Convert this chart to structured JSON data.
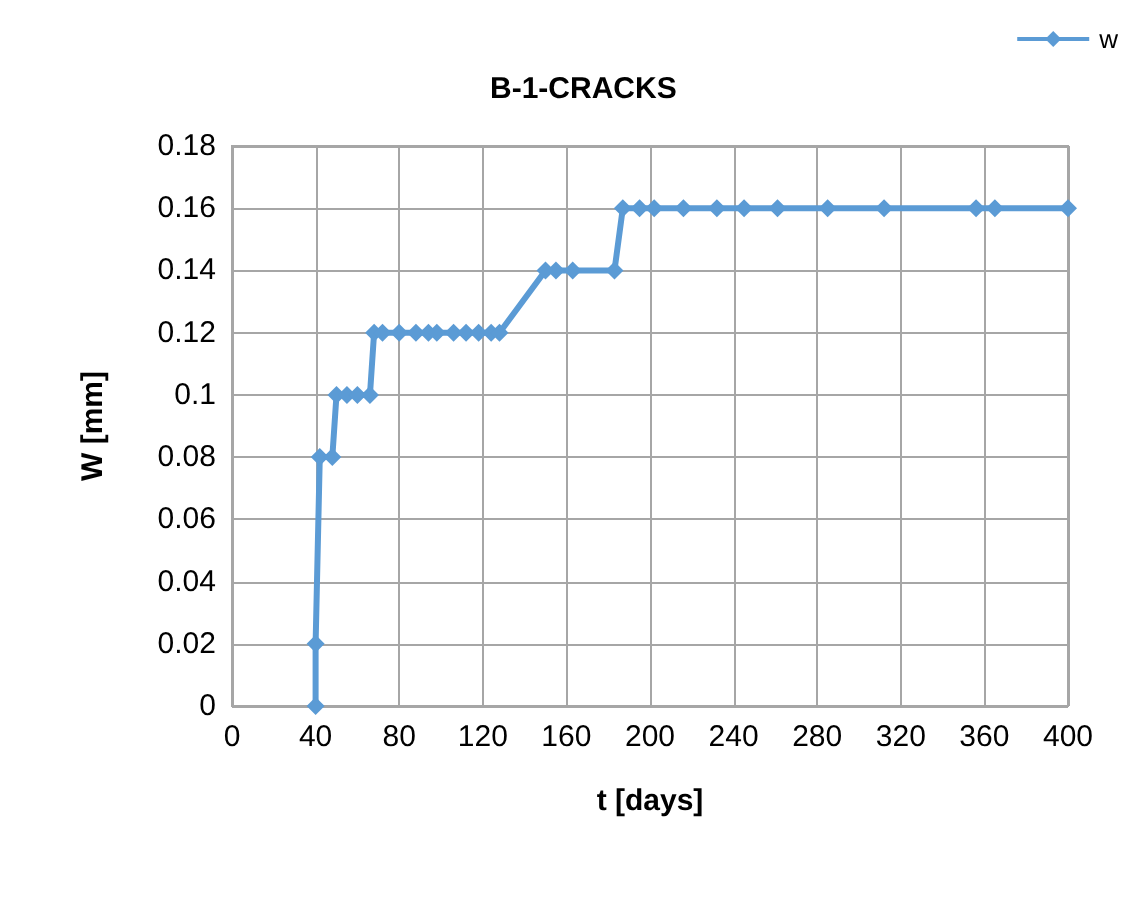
{
  "chart_data": {
    "type": "line",
    "title": "B-1-CRACKS",
    "xlabel": "t [days]",
    "ylabel": "W [mm]",
    "series": [
      {
        "name": "w",
        "color": "#5b9bd5",
        "x": [
          40,
          40,
          42,
          48,
          50,
          55,
          60,
          66,
          68,
          72,
          80,
          88,
          94,
          98,
          106,
          112,
          118,
          124,
          128,
          150,
          155,
          163,
          183,
          187,
          195,
          202,
          216,
          232,
          245,
          261,
          285,
          312,
          356,
          365,
          400
        ],
        "values": [
          0,
          0.02,
          0.08,
          0.08,
          0.1,
          0.1,
          0.1,
          0.1,
          0.12,
          0.12,
          0.12,
          0.12,
          0.12,
          0.12,
          0.12,
          0.12,
          0.12,
          0.12,
          0.12,
          0.14,
          0.14,
          0.14,
          0.14,
          0.16,
          0.16,
          0.16,
          0.16,
          0.16,
          0.16,
          0.16,
          0.16,
          0.16,
          0.16,
          0.16,
          0.16
        ]
      }
    ],
    "xlim": [
      0,
      400
    ],
    "xticks": [
      0,
      40,
      80,
      120,
      160,
      200,
      240,
      280,
      320,
      360,
      400
    ],
    "ylim": [
      0,
      0.18
    ],
    "yticks": [
      0,
      0.02,
      0.04,
      0.06,
      0.08,
      0.1,
      0.12,
      0.14,
      0.16,
      0.18
    ],
    "grid": true,
    "legend": "top right",
    "marker": "diamond",
    "line_style": "solid"
  }
}
